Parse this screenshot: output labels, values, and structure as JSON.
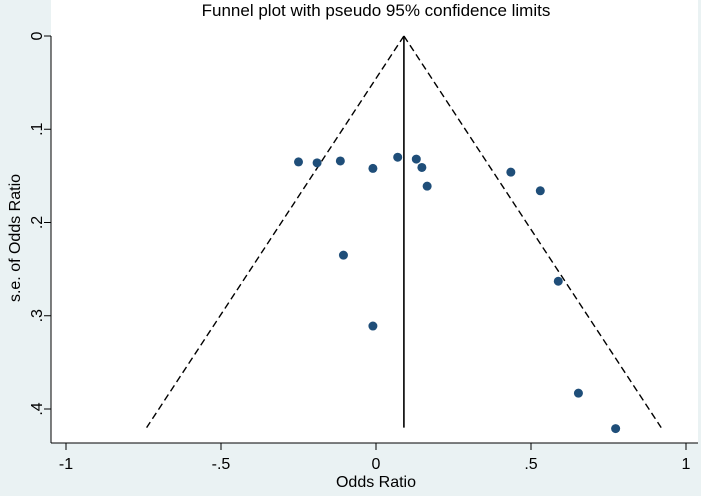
{
  "chart_data": {
    "type": "scatter",
    "title": "Funnel plot with pseudo 95% confidence limits",
    "xlabel": "Odds Ratio",
    "ylabel": "s.e. of Odds Ratio",
    "xlim": [
      -1,
      1
    ],
    "ylim": [
      0,
      0.42
    ],
    "y_reversed": true,
    "x_ticks": [
      -1,
      -0.5,
      0,
      0.5,
      1
    ],
    "x_tick_labels": [
      "-1",
      "-.5",
      "0",
      ".5",
      "1"
    ],
    "y_ticks": [
      0,
      0.1,
      0.2,
      0.3,
      0.4
    ],
    "y_tick_labels": [
      "0",
      ".1",
      ".2",
      ".3",
      ".4"
    ],
    "grid": false,
    "pooled_estimate": 0.09,
    "confidence_limit_z": 1.96,
    "funnel_limits": {
      "apex": [
        0.09,
        0
      ],
      "lower_left": [
        -0.74,
        0.42
      ],
      "lower_right": [
        0.92,
        0.42
      ]
    },
    "points": [
      {
        "x": -0.25,
        "y": 0.135
      },
      {
        "x": -0.19,
        "y": 0.136
      },
      {
        "x": -0.115,
        "y": 0.134
      },
      {
        "x": -0.01,
        "y": 0.142
      },
      {
        "x": 0.07,
        "y": 0.13
      },
      {
        "x": 0.13,
        "y": 0.132
      },
      {
        "x": 0.148,
        "y": 0.141
      },
      {
        "x": 0.165,
        "y": 0.161
      },
      {
        "x": 0.435,
        "y": 0.146
      },
      {
        "x": 0.53,
        "y": 0.166
      },
      {
        "x": -0.105,
        "y": 0.235
      },
      {
        "x": 0.588,
        "y": 0.263
      },
      {
        "x": -0.01,
        "y": 0.311
      },
      {
        "x": 0.653,
        "y": 0.383
      },
      {
        "x": 0.773,
        "y": 0.421
      }
    ],
    "colors": {
      "background": "#eaf2f3",
      "plot_area": "#ffffff",
      "points": "#1f4e79",
      "lines": "#000000"
    }
  }
}
